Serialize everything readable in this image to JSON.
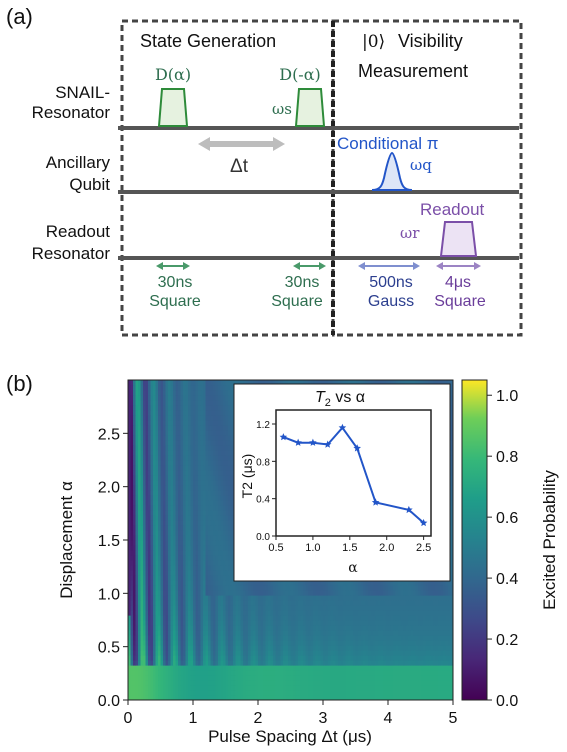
{
  "panel_a": {
    "label": "(a)",
    "box_left_title": "State Generation",
    "box_right_title_ket": "|0⟩",
    "box_right_title_1": "Visibility",
    "box_right_title_2": "Measurement",
    "rows": [
      {
        "label_1": "SNAIL-",
        "label_2": "Resonator"
      },
      {
        "label_1": "Ancillary",
        "label_2": "Qubit"
      },
      {
        "label_1": "Readout",
        "label_2": "Resonator"
      }
    ],
    "pulse_d_alpha": "D(α)",
    "pulse_d_minus_alpha": "D(-α)",
    "omega_s": "ωs",
    "delta_t": "Δt",
    "conditional_pi": "Conditional π",
    "omega_q": "ωq",
    "readout": "Readout",
    "omega_r": "ωr",
    "durations": [
      {
        "value": "30ns",
        "shape": "Square",
        "color": "#2e6e4f"
      },
      {
        "value": "30ns",
        "shape": "Square",
        "color": "#2e6e4f"
      },
      {
        "value": "500ns",
        "shape": "Gauss",
        "color": "#2c3f8f"
      },
      {
        "value": "4μs",
        "shape": "Square",
        "color": "#6a3d9a"
      }
    ],
    "colors": {
      "green": "#2e8b3a",
      "blue": "#2255c8",
      "purple": "#7b4fa8",
      "line": "#555555"
    }
  },
  "panel_b": {
    "label": "(b)",
    "xlabel": "Pulse Spacing Δt (μs)",
    "ylabel": "Displacement  α",
    "x_ticks": [
      "0",
      "1",
      "2",
      "3",
      "4",
      "5"
    ],
    "y_ticks": [
      "0.0",
      "0.5",
      "1.0",
      "1.5",
      "2.0",
      "2.5"
    ],
    "colorbar_label": "Excited Probability",
    "colorbar_ticks": [
      "0.0",
      "0.2",
      "0.4",
      "0.6",
      "0.8",
      "1.0"
    ],
    "inset": {
      "title": "T2 vs α",
      "title_sym": "T",
      "title_sub": "2",
      "title_rest": " vs α",
      "ylabel": "T2 (μs)",
      "xlabel": "α",
      "x_ticks": [
        "0.5",
        "1.0",
        "1.5",
        "2.0",
        "2.5"
      ],
      "y_ticks": [
        "0.0",
        "0.4",
        "0.8",
        "1.2"
      ]
    }
  },
  "chart_data": {
    "type": "line",
    "x": [
      0.6,
      0.8,
      1.0,
      1.2,
      1.4,
      1.6,
      1.85,
      2.3,
      2.5
    ],
    "series": [
      {
        "values": [
          1.06,
          1.0,
          1.0,
          0.98,
          1.16,
          0.94,
          0.36,
          0.28,
          0.14
        ]
      }
    ],
    "title": "T2 vs α",
    "xlabel": "α",
    "ylabel": "T2 (μs)",
    "xlim": [
      0.5,
      2.6
    ],
    "ylim": [
      0.0,
      1.35
    ],
    "heatmap": {
      "type": "heatmap",
      "xlabel": "Pulse Spacing Δt (μs)",
      "ylabel": "Displacement α",
      "xlim": [
        0,
        5
      ],
      "ylim": [
        0,
        3
      ],
      "zlim": [
        0.0,
        1.05
      ],
      "colorbar_label": "Excited Probability"
    }
  }
}
